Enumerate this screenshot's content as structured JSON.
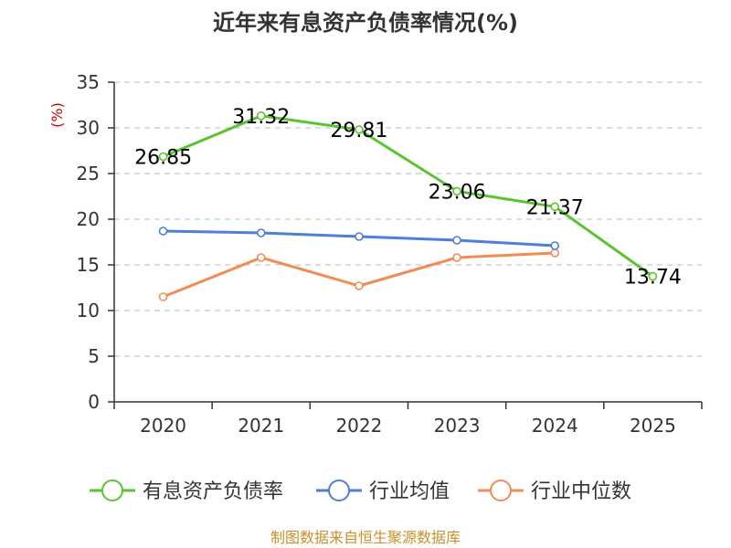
{
  "chart_data": {
    "type": "line",
    "title": "近年来有息资产负债率情况(%)",
    "ylabel": "(%)",
    "categories": [
      "2020",
      "2021",
      "2022",
      "2023",
      "2024",
      "2025"
    ],
    "ylim": [
      0,
      35
    ],
    "yticks": [
      0,
      5,
      10,
      15,
      20,
      25,
      30,
      35
    ],
    "grid": true,
    "legend_position": "bottom",
    "series": [
      {
        "name": "有息资产负债率",
        "color": "#5ac42f",
        "values": [
          26.85,
          31.32,
          29.81,
          23.06,
          21.37,
          13.74
        ],
        "labels": [
          "26.85",
          "31.32",
          "29.81",
          "23.06",
          "21.37",
          "13.74"
        ]
      },
      {
        "name": "行业均值",
        "color": "#4e7fd6",
        "values": [
          18.7,
          18.5,
          18.1,
          17.7,
          17.1,
          null
        ]
      },
      {
        "name": "行业中位数",
        "color": "#f28c55",
        "values": [
          11.5,
          15.8,
          12.7,
          15.8,
          16.3,
          null
        ]
      }
    ],
    "source": "制图数据来自恒生聚源数据库"
  }
}
